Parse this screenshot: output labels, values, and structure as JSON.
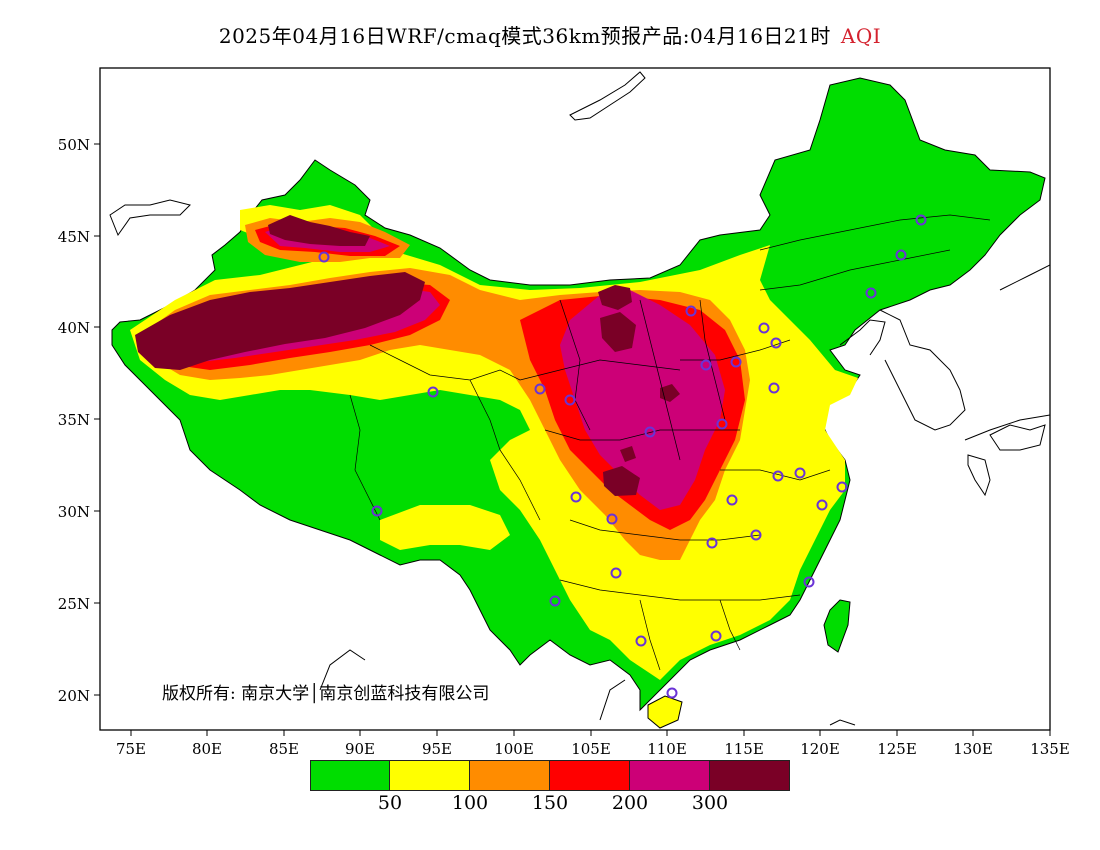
{
  "title": {
    "main": "2025年04月16日WRF/cmaq模式36km预报产品:04月16日21时",
    "highlight": "AQI"
  },
  "map": {
    "lat_ticks": [
      "20N",
      "25N",
      "30N",
      "35N",
      "40N",
      "45N",
      "50N"
    ],
    "lon_ticks": [
      "75E",
      "80E",
      "85E",
      "90E",
      "95E",
      "100E",
      "105E",
      "110E",
      "115E",
      "120E",
      "125E",
      "130E",
      "135E"
    ]
  },
  "colors": {
    "aqi_good": "#00dd00",
    "aqi_moderate": "#ffff00",
    "aqi_usg": "#ff8c00",
    "aqi_unhealthy": "#ff0000",
    "aqi_very_unhealthy": "#cc0077",
    "aqi_hazardous": "#7a0026",
    "station_ring": "#6a33d6"
  },
  "legend": {
    "colors": [
      "#00dd00",
      "#ffff00",
      "#ff8c00",
      "#ff0000",
      "#cc0077",
      "#7a0026"
    ],
    "labels": [
      "50",
      "100",
      "150",
      "200",
      "300"
    ]
  },
  "copyright": "版权所有: 南京大学│南京创蓝科技有限公司"
}
